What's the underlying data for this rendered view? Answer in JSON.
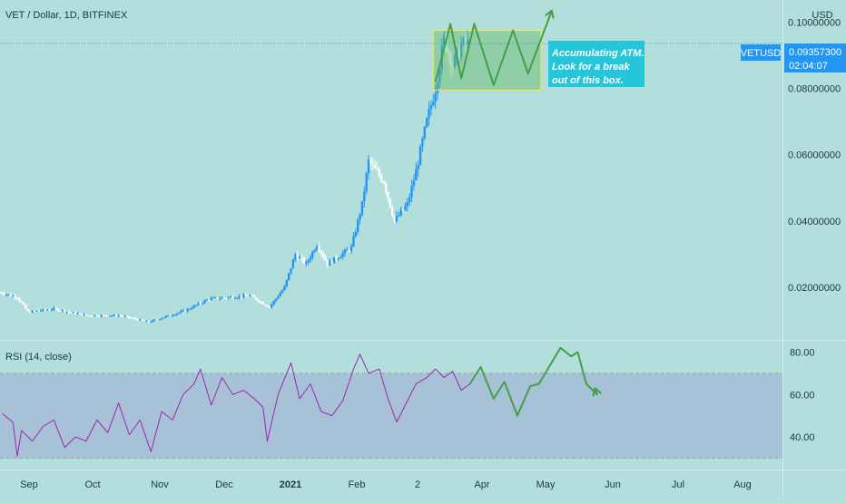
{
  "header": {
    "title": "VET / Dollar, 1D, BITFINEX",
    "currency": "USD"
  },
  "price_axis": {
    "ticks": [
      "0.10000000",
      "0.08000000",
      "0.06000000",
      "0.04000000",
      "0.02000000"
    ],
    "symbol_label": "VETUSD",
    "current_price": "0.09357300",
    "countdown": "02:04:07"
  },
  "rsi": {
    "label": "RSI (14, close)",
    "ticks": [
      "80.00",
      "60.00",
      "40.00"
    ]
  },
  "time_axis": {
    "labels": [
      "Sep",
      "Oct",
      "Nov",
      "Dec",
      "2021",
      "Feb",
      "2",
      "Apr",
      "May",
      "Jun",
      "Jul",
      "Aug"
    ]
  },
  "annotation": {
    "text_line1": "Accumulating ATM.",
    "text_line2": "Look for a break",
    "text_line3": "out of this box."
  },
  "colors": {
    "background": "#b2dfdb",
    "candle_up": "#2196f3",
    "candle_down": "#ffffff",
    "rsi_line": "#9c27b0",
    "rsi_band": "rgba(126,87,194,0.22)",
    "projection": "#43a047",
    "box_fill": "rgba(102,187,106,0.45)",
    "box_border": "#ffeb3b",
    "price_label": "#2196f3",
    "note_bg": "#26c6da"
  },
  "chart_data": [
    {
      "type": "candlestick",
      "title": "VET / Dollar, 1D, BITFINEX",
      "ylabel": "USD",
      "ylim": [
        0.0055,
        0.1045
      ],
      "x_range": [
        "2020-08-26",
        "2021-08-24"
      ],
      "current_price": 0.093573,
      "anchors": [
        {
          "date": "2020-08-26",
          "value": 0.0185
        },
        {
          "date": "2020-09-03",
          "value": 0.017
        },
        {
          "date": "2020-09-08",
          "value": 0.0125
        },
        {
          "date": "2020-09-20",
          "value": 0.0135
        },
        {
          "date": "2020-10-05",
          "value": 0.0115
        },
        {
          "date": "2020-10-20",
          "value": 0.0115
        },
        {
          "date": "2020-11-03",
          "value": 0.0095
        },
        {
          "date": "2020-11-20",
          "value": 0.013
        },
        {
          "date": "2020-12-01",
          "value": 0.0165
        },
        {
          "date": "2020-12-20",
          "value": 0.0175
        },
        {
          "date": "2020-12-29",
          "value": 0.014
        },
        {
          "date": "2021-01-05",
          "value": 0.02
        },
        {
          "date": "2021-01-10",
          "value": 0.03
        },
        {
          "date": "2021-01-15",
          "value": 0.027
        },
        {
          "date": "2021-01-20",
          "value": 0.033
        },
        {
          "date": "2021-01-25",
          "value": 0.027
        },
        {
          "date": "2021-02-05",
          "value": 0.032
        },
        {
          "date": "2021-02-10",
          "value": 0.045
        },
        {
          "date": "2021-02-13",
          "value": 0.058
        },
        {
          "date": "2021-02-20",
          "value": 0.052
        },
        {
          "date": "2021-02-25",
          "value": 0.04
        },
        {
          "date": "2021-03-03",
          "value": 0.045
        },
        {
          "date": "2021-03-07",
          "value": 0.055
        },
        {
          "date": "2021-03-12",
          "value": 0.07
        },
        {
          "date": "2021-03-16",
          "value": 0.08
        },
        {
          "date": "2021-03-20",
          "value": 0.095
        },
        {
          "date": "2021-03-24",
          "value": 0.087
        },
        {
          "date": "2021-03-28",
          "value": 0.093
        },
        {
          "date": "2021-03-31",
          "value": 0.0936
        }
      ],
      "accumulation_box": {
        "from": "2021-03-15",
        "to": "2021-05-04",
        "top": 0.0975,
        "bottom": 0.0795
      },
      "projection": [
        {
          "date": "2021-03-16",
          "value": 0.082
        },
        {
          "date": "2021-03-23",
          "value": 0.0995
        },
        {
          "date": "2021-03-28",
          "value": 0.083
        },
        {
          "date": "2021-04-03",
          "value": 0.0995
        },
        {
          "date": "2021-04-12",
          "value": 0.081
        },
        {
          "date": "2021-04-21",
          "value": 0.0975
        },
        {
          "date": "2021-04-28",
          "value": 0.0845
        },
        {
          "date": "2021-05-09",
          "value": 0.1035
        }
      ]
    },
    {
      "type": "line",
      "title": "RSI (14, close)",
      "ylim": [
        25.5,
        84.5
      ],
      "band": [
        30,
        70
      ],
      "x_range": [
        "2020-08-26",
        "2021-08-24"
      ],
      "series": [
        {
          "values": [
            {
              "date": "2020-08-27",
              "value": 51
            },
            {
              "date": "2020-09-01",
              "value": 47
            },
            {
              "date": "2020-09-03",
              "value": 31
            },
            {
              "date": "2020-09-05",
              "value": 43
            },
            {
              "date": "2020-09-10",
              "value": 38
            },
            {
              "date": "2020-09-15",
              "value": 45
            },
            {
              "date": "2020-09-20",
              "value": 48
            },
            {
              "date": "2020-09-25",
              "value": 35
            },
            {
              "date": "2020-09-30",
              "value": 40
            },
            {
              "date": "2020-10-05",
              "value": 38
            },
            {
              "date": "2020-10-10",
              "value": 48
            },
            {
              "date": "2020-10-15",
              "value": 42
            },
            {
              "date": "2020-10-20",
              "value": 56
            },
            {
              "date": "2020-10-25",
              "value": 41
            },
            {
              "date": "2020-10-30",
              "value": 48
            },
            {
              "date": "2020-11-04",
              "value": 33
            },
            {
              "date": "2020-11-09",
              "value": 52
            },
            {
              "date": "2020-11-14",
              "value": 48
            },
            {
              "date": "2020-11-19",
              "value": 60
            },
            {
              "date": "2020-11-24",
              "value": 65
            },
            {
              "date": "2020-11-27",
              "value": 72
            },
            {
              "date": "2020-12-02",
              "value": 55
            },
            {
              "date": "2020-12-07",
              "value": 68
            },
            {
              "date": "2020-12-12",
              "value": 60
            },
            {
              "date": "2020-12-17",
              "value": 62
            },
            {
              "date": "2020-12-22",
              "value": 58
            },
            {
              "date": "2020-12-26",
              "value": 54
            },
            {
              "date": "2020-12-28",
              "value": 38
            },
            {
              "date": "2021-01-02",
              "value": 60
            },
            {
              "date": "2021-01-06",
              "value": 70
            },
            {
              "date": "2021-01-08",
              "value": 75
            },
            {
              "date": "2021-01-12",
              "value": 58
            },
            {
              "date": "2021-01-17",
              "value": 65
            },
            {
              "date": "2021-01-22",
              "value": 52
            },
            {
              "date": "2021-01-27",
              "value": 50
            },
            {
              "date": "2021-02-01",
              "value": 57
            },
            {
              "date": "2021-02-06",
              "value": 72
            },
            {
              "date": "2021-02-09",
              "value": 79
            },
            {
              "date": "2021-02-13",
              "value": 70
            },
            {
              "date": "2021-02-18",
              "value": 72
            },
            {
              "date": "2021-02-22",
              "value": 58
            },
            {
              "date": "2021-02-26",
              "value": 47
            },
            {
              "date": "2021-03-02",
              "value": 55
            },
            {
              "date": "2021-03-07",
              "value": 65
            },
            {
              "date": "2021-03-12",
              "value": 68
            },
            {
              "date": "2021-03-16",
              "value": 72
            },
            {
              "date": "2021-03-20",
              "value": 68
            },
            {
              "date": "2021-03-24",
              "value": 71
            },
            {
              "date": "2021-03-28",
              "value": 62
            },
            {
              "date": "2021-04-01",
              "value": 65
            }
          ]
        },
        {
          "name": "projection",
          "values": [
            {
              "date": "2021-04-01",
              "value": 65
            },
            {
              "date": "2021-04-06",
              "value": 73
            },
            {
              "date": "2021-04-12",
              "value": 58
            },
            {
              "date": "2021-04-17",
              "value": 66
            },
            {
              "date": "2021-04-23",
              "value": 50
            },
            {
              "date": "2021-04-29",
              "value": 64
            },
            {
              "date": "2021-05-03",
              "value": 65
            },
            {
              "date": "2021-05-13",
              "value": 82
            },
            {
              "date": "2021-05-18",
              "value": 78
            },
            {
              "date": "2021-05-21",
              "value": 80
            },
            {
              "date": "2021-05-25",
              "value": 65
            },
            {
              "date": "2021-05-30",
              "value": 60
            },
            {
              "date": "2021-05-29",
              "value": 63
            }
          ]
        }
      ]
    }
  ]
}
